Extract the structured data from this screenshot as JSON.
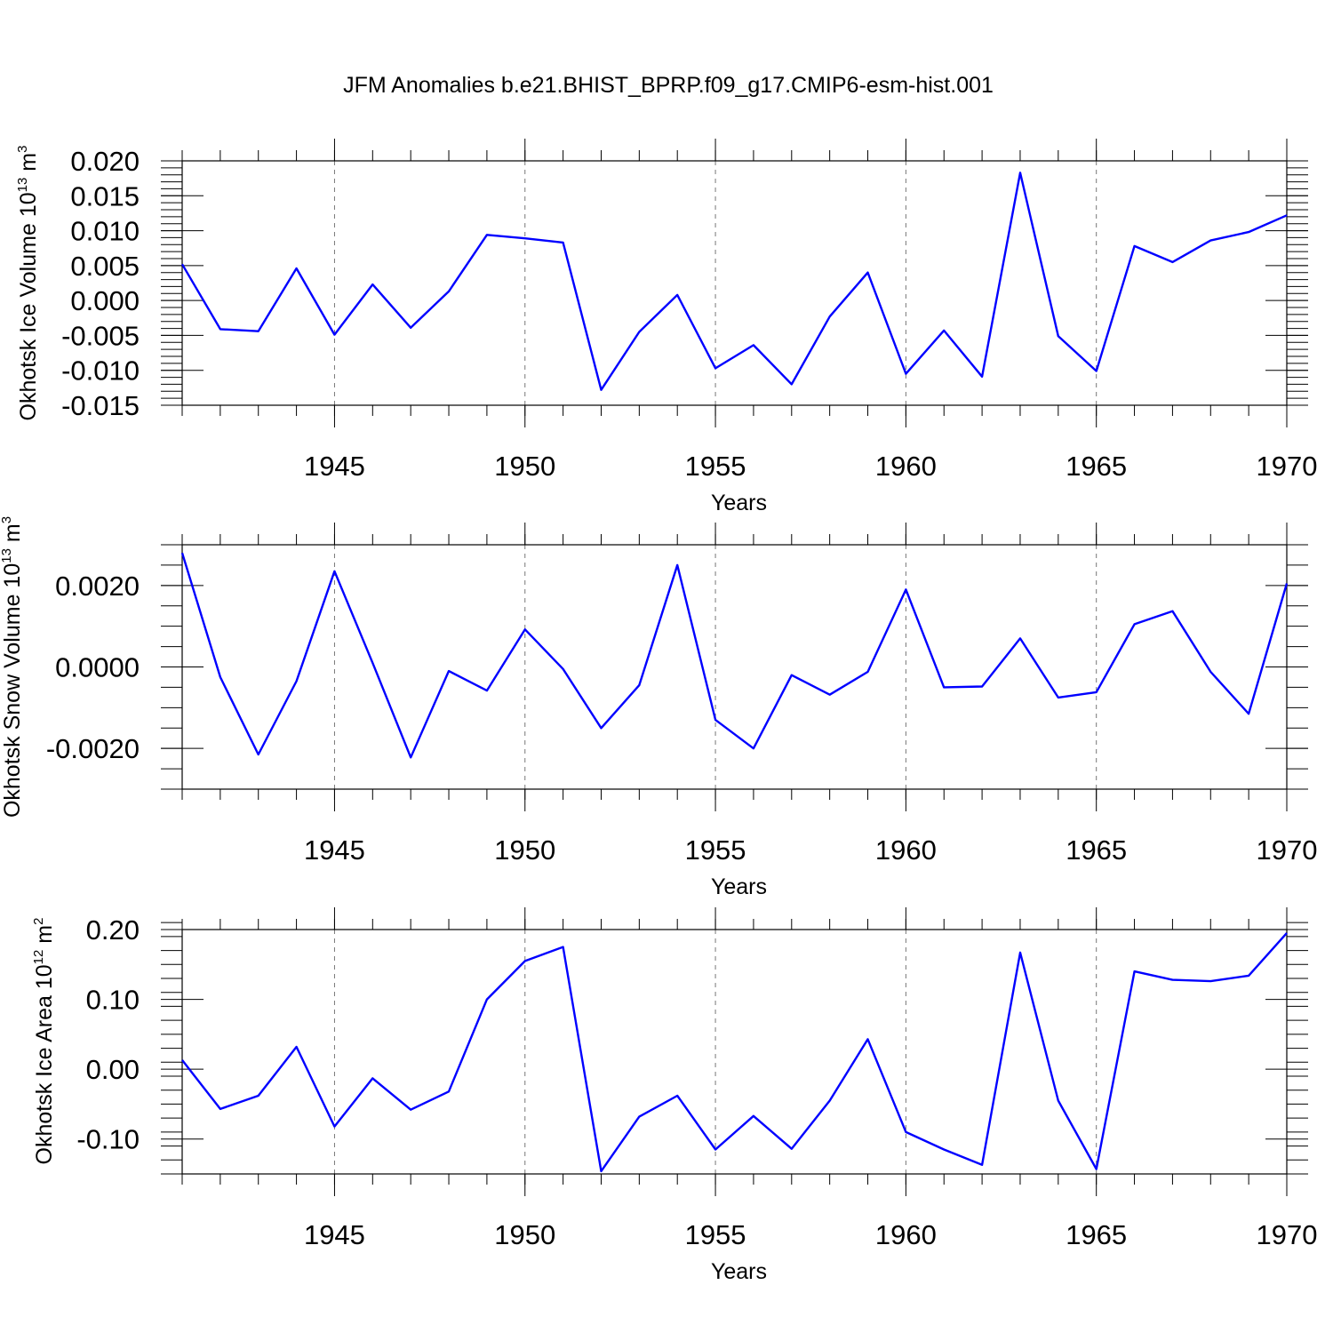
{
  "title": "JFM Anomalies b.e21.BHIST_BPRP.f09_g17.CMIP6-esm-hist.001",
  "colors": {
    "series": "#0000ff",
    "grid": "#777777",
    "axis": "#000000"
  },
  "chart_data": [
    {
      "type": "line",
      "title": "JFM Anomalies b.e21.BHIST_BPRP.f09_g17.CMIP6-esm-hist.001",
      "xlabel": "Years",
      "ylabel": {
        "main": "Okhotsk Ice Volume 10",
        "exp": "13",
        "unit": " m",
        "unit_exp": "3"
      },
      "xlim": [
        1941,
        1970
      ],
      "ylim": [
        -0.015,
        0.02
      ],
      "xticks": [
        1945,
        1950,
        1955,
        1960,
        1965,
        1970
      ],
      "yticks": [
        -0.015,
        -0.01,
        -0.005,
        0.0,
        0.005,
        0.01,
        0.015,
        0.02
      ],
      "ytick_labels": [
        "-0.015",
        "-0.010",
        "-0.005",
        "0.000",
        "0.005",
        "0.010",
        "0.015",
        "0.020"
      ],
      "yminor_step": 0.001,
      "x": [
        1941,
        1942,
        1943,
        1944,
        1945,
        1946,
        1947,
        1948,
        1949,
        1950,
        1951,
        1952,
        1953,
        1954,
        1955,
        1956,
        1957,
        1958,
        1959,
        1960,
        1961,
        1962,
        1963,
        1964,
        1965,
        1966,
        1967,
        1968,
        1969,
        1970
      ],
      "values": [
        0.0052,
        -0.0041,
        -0.0044,
        0.0046,
        -0.0049,
        0.0023,
        -0.0039,
        0.0013,
        0.0094,
        0.0089,
        0.0083,
        -0.0128,
        -0.0045,
        0.0008,
        -0.0097,
        -0.0064,
        -0.012,
        -0.0023,
        0.004,
        -0.0105,
        -0.0043,
        -0.0109,
        0.0183,
        -0.0051,
        -0.0101,
        0.0078,
        0.0055,
        0.0086,
        0.0098,
        0.0122
      ]
    },
    {
      "type": "line",
      "xlabel": "Years",
      "ylabel": {
        "main": "Okhotsk Snow Volume 10",
        "exp": "13",
        "unit": " m",
        "unit_exp": "3"
      },
      "xlim": [
        1941,
        1970
      ],
      "ylim": [
        -0.003,
        0.003
      ],
      "xticks": [
        1945,
        1950,
        1955,
        1960,
        1965,
        1970
      ],
      "yticks": [
        -0.002,
        0.0,
        0.002
      ],
      "ytick_labels": [
        "-0.0020",
        "0.0000",
        "0.0020"
      ],
      "yminor_step": 0.0005,
      "x": [
        1941,
        1942,
        1943,
        1944,
        1945,
        1946,
        1947,
        1948,
        1949,
        1950,
        1951,
        1952,
        1953,
        1954,
        1955,
        1956,
        1957,
        1958,
        1959,
        1960,
        1961,
        1962,
        1963,
        1964,
        1965,
        1966,
        1967,
        1968,
        1969,
        1970
      ],
      "values": [
        0.0028,
        -0.00025,
        -0.00215,
        -0.00035,
        0.00235,
        0.0001,
        -0.00222,
        -0.0001,
        -0.00058,
        0.00092,
        -5e-05,
        -0.0015,
        -0.00045,
        0.0025,
        -0.0013,
        -0.002,
        -0.0002,
        -0.00068,
        -0.00012,
        0.0019,
        -0.0005,
        -0.00048,
        0.0007,
        -0.00075,
        -0.00062,
        0.00105,
        0.00137,
        -0.00012,
        -0.00115,
        0.00205
      ]
    },
    {
      "type": "line",
      "xlabel": "Years",
      "ylabel": {
        "main": "Okhotsk Ice Area 10",
        "exp": "12",
        "unit": " m",
        "unit_exp": "2"
      },
      "xlim": [
        1941,
        1970
      ],
      "ylim": [
        -0.15,
        0.2
      ],
      "xticks": [
        1945,
        1950,
        1955,
        1960,
        1965,
        1970
      ],
      "yticks": [
        -0.1,
        0.0,
        0.1,
        0.2
      ],
      "ytick_labels": [
        "-0.10",
        "0.00",
        "0.10",
        "0.20"
      ],
      "yminor_step": 0.02,
      "x": [
        1941,
        1942,
        1943,
        1944,
        1945,
        1946,
        1947,
        1948,
        1949,
        1950,
        1951,
        1952,
        1953,
        1954,
        1955,
        1956,
        1957,
        1958,
        1959,
        1960,
        1961,
        1962,
        1963,
        1964,
        1965,
        1966,
        1967,
        1968,
        1969,
        1970
      ],
      "values": [
        0.013,
        -0.057,
        -0.038,
        0.032,
        -0.082,
        -0.013,
        -0.058,
        -0.032,
        0.1,
        0.155,
        0.175,
        -0.146,
        -0.068,
        -0.038,
        -0.115,
        -0.067,
        -0.114,
        -0.045,
        0.043,
        -0.09,
        -0.115,
        -0.137,
        0.167,
        -0.045,
        -0.143,
        0.14,
        0.128,
        0.126,
        0.134,
        0.195
      ]
    }
  ]
}
